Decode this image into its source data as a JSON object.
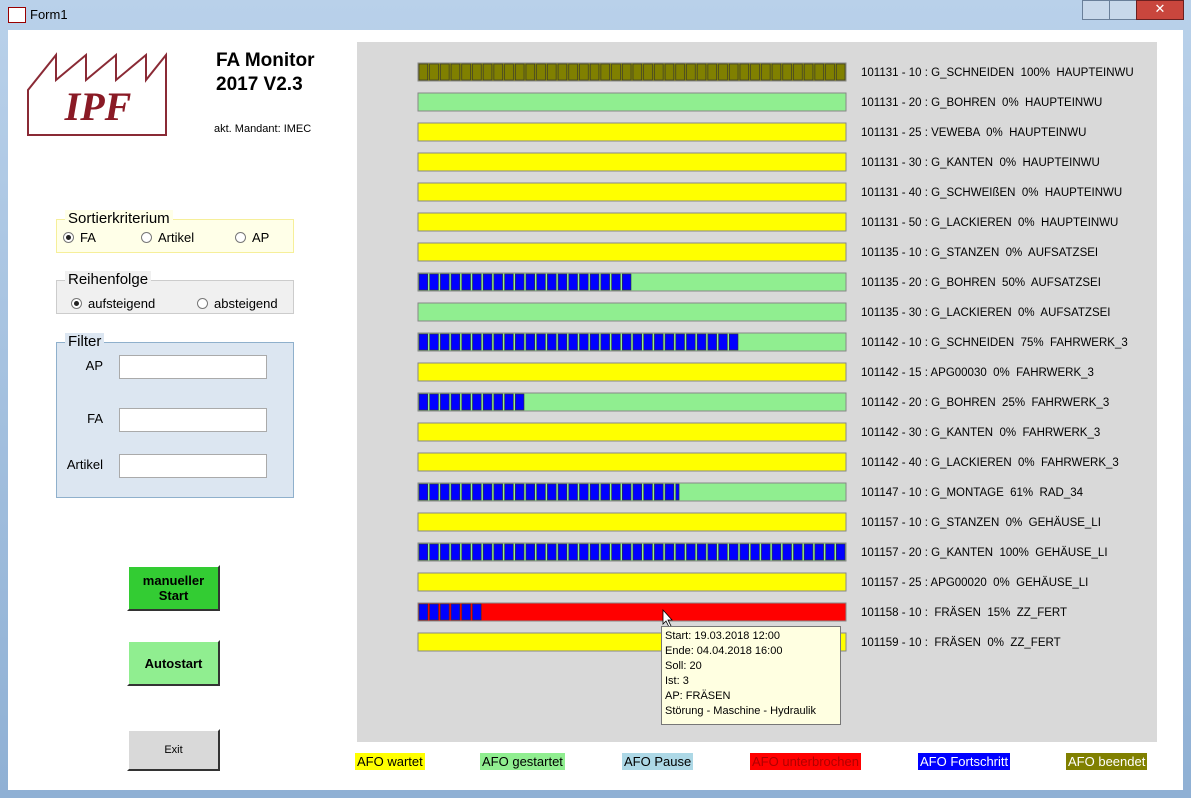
{
  "window": {
    "title": "Form1"
  },
  "header": {
    "logo": "IPF",
    "title": "FA Monitor",
    "version": "2017 V2.3",
    "mandant": "akt. Mandant: IMEC"
  },
  "sort": {
    "title": "Sortierkriterium",
    "options": [
      {
        "label": "FA",
        "checked": true
      },
      {
        "label": "Artikel",
        "checked": false
      },
      {
        "label": "AP",
        "checked": false
      }
    ]
  },
  "order": {
    "title": "Reihenfolge",
    "options": [
      {
        "label": "aufsteigend",
        "checked": true
      },
      {
        "label": "absteigend",
        "checked": false
      }
    ]
  },
  "filter": {
    "title": "Filter",
    "fields": [
      "AP",
      "FA",
      "Artikel"
    ]
  },
  "buttons": {
    "manual": [
      "manueller",
      "Start"
    ],
    "auto": "Autostart",
    "exit": "Exit"
  },
  "rows": [
    {
      "label": "101131 - 10 : G_SCHNEIDEN  100%  HAUPTEINWU",
      "progress": 100,
      "bar_color": "#808000",
      "progress_color": "#808000"
    },
    {
      "label": "101131 - 20 : G_BOHREN  0%  HAUPTEINWU",
      "progress": 0,
      "bar_color": "#90ee90",
      "progress_color": "#0000ff"
    },
    {
      "label": "101131 - 25 : VEWEBA  0%  HAUPTEINWU",
      "progress": 0,
      "bar_color": "#ffff00",
      "progress_color": "#0000ff"
    },
    {
      "label": "101131 - 30 : G_KANTEN  0%  HAUPTEINWU",
      "progress": 0,
      "bar_color": "#ffff00",
      "progress_color": "#0000ff"
    },
    {
      "label": "101131 - 40 : G_SCHWEIßEN  0%  HAUPTEINWU",
      "progress": 0,
      "bar_color": "#ffff00",
      "progress_color": "#0000ff"
    },
    {
      "label": "101131 - 50 : G_LACKIEREN  0%  HAUPTEINWU",
      "progress": 0,
      "bar_color": "#ffff00",
      "progress_color": "#0000ff"
    },
    {
      "label": "101135 - 10 : G_STANZEN  0%  AUFSATZSEI",
      "progress": 0,
      "bar_color": "#ffff00",
      "progress_color": "#0000ff"
    },
    {
      "label": "101135 - 20 : G_BOHREN  50%  AUFSATZSEI",
      "progress": 50,
      "bar_color": "#90ee90",
      "progress_color": "#0000ff"
    },
    {
      "label": "101135 - 30 : G_LACKIEREN  0%  AUFSATZSEI",
      "progress": 0,
      "bar_color": "#90ee90",
      "progress_color": "#0000ff"
    },
    {
      "label": "101142 - 10 : G_SCHNEIDEN  75%  FAHRWERK_3",
      "progress": 75,
      "bar_color": "#90ee90",
      "progress_color": "#0000ff"
    },
    {
      "label": "101142 - 15 : APG00030  0%  FAHRWERK_3",
      "progress": 0,
      "bar_color": "#ffff00",
      "progress_color": "#0000ff"
    },
    {
      "label": "101142 - 20 : G_BOHREN  25%  FAHRWERK_3",
      "progress": 25,
      "bar_color": "#90ee90",
      "progress_color": "#0000ff"
    },
    {
      "label": "101142 - 30 : G_KANTEN  0%  FAHRWERK_3",
      "progress": 0,
      "bar_color": "#ffff00",
      "progress_color": "#0000ff"
    },
    {
      "label": "101142 - 40 : G_LACKIEREN  0%  FAHRWERK_3",
      "progress": 0,
      "bar_color": "#ffff00",
      "progress_color": "#0000ff"
    },
    {
      "label": "101147 - 10 : G_MONTAGE  61%  RAD_34",
      "progress": 61,
      "bar_color": "#90ee90",
      "progress_color": "#0000ff"
    },
    {
      "label": "101157 - 10 : G_STANZEN  0%  GEHÄUSE_LI",
      "progress": 0,
      "bar_color": "#ffff00",
      "progress_color": "#0000ff"
    },
    {
      "label": "101157 - 20 : G_KANTEN  100%  GEHÄUSE_LI",
      "progress": 100,
      "bar_color": "#90ee90",
      "progress_color": "#0000ff"
    },
    {
      "label": "101157 - 25 : APG00020  0%  GEHÄUSE_LI",
      "progress": 0,
      "bar_color": "#ffff00",
      "progress_color": "#0000ff"
    },
    {
      "label": "101158 - 10 :  FRÄSEN  15%  ZZ_FERT",
      "progress": 15,
      "bar_color": "#ff0000",
      "progress_color": "#0000ff"
    },
    {
      "label": "101159 - 10 :  FRÄSEN  0%  ZZ_FERT",
      "progress": 0,
      "bar_color": "#ffff00",
      "progress_color": "#0000ff"
    }
  ],
  "tooltip": [
    "Start: 19.03.2018 12:00",
    "Ende: 04.04.2018 16:00",
    "Soll: 20",
    "Ist: 3",
    "AP: FRÄSEN",
    "Störung - Maschine - Hydraulik"
  ],
  "legend": [
    {
      "label": "AFO wartet",
      "color": "#ffff00",
      "text_color": "#000000"
    },
    {
      "label": "AFO gestartet",
      "color": "#90ee90",
      "text_color": "#000000"
    },
    {
      "label": "AFO Pause",
      "color": "#add8e6",
      "text_color": "#000000"
    },
    {
      "label": "AFO unterbrochen",
      "color": "#ff0000",
      "text_color": "#b00000"
    },
    {
      "label": "AFO Fortschritt",
      "color": "#0000ff",
      "text_color": "#ffffff"
    },
    {
      "label": "AFO beendet",
      "color": "#808000",
      "text_color": "#ffffff"
    }
  ]
}
